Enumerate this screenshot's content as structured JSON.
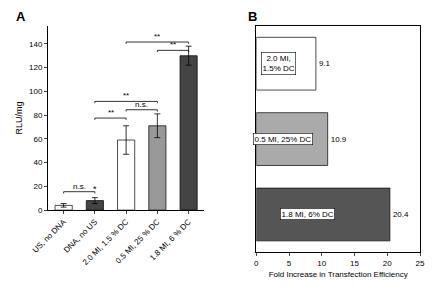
{
  "chart_data": [
    {
      "type": "bar",
      "title": "A",
      "categories": [
        "US, no DNA",
        "DNA, no US",
        "2.0 MI, 1.5 % DC",
        "0.5 MI, 25 % DC",
        "1.8 MI, 6 % DC"
      ],
      "values": [
        4,
        8,
        59,
        71,
        130
      ],
      "errors": [
        1.5,
        2.5,
        12,
        10,
        8
      ],
      "colors": [
        "white",
        "#444444",
        "white",
        "#999999",
        "#444444"
      ],
      "ylabel": "RLU/mg",
      "ylim": [
        0,
        155
      ],
      "yticks": [
        0,
        20,
        40,
        60,
        80,
        100,
        120,
        140
      ],
      "grid": false,
      "annotations": [
        {
          "text": "n.s.",
          "from": "US, no DNA",
          "to": "DNA, no US",
          "y": 14
        },
        {
          "text": "*",
          "x": "DNA, no US",
          "y": 13
        },
        {
          "text": "**",
          "from": "DNA, no US",
          "to": "2.0 MI, 1.5 % DC",
          "y": 76
        },
        {
          "text": "n.s.",
          "from": "2.0 MI, 1.5 % DC",
          "to": "0.5 MI, 25 % DC",
          "y": 83
        },
        {
          "text": "**",
          "from": "DNA, no US",
          "to": "0.5 MI, 25 % DC",
          "y": 90
        },
        {
          "text": "**",
          "from": "2.0 MI, 1.5 % DC",
          "to": "1.8 MI, 6 % DC",
          "y": 140
        },
        {
          "text": "**",
          "from": "0.5 MI, 25 % DC",
          "to": "1.8 MI, 6 % DC",
          "y": 133
        }
      ]
    },
    {
      "type": "bar",
      "title": "B",
      "orientation": "horizontal",
      "categories": [
        "2.0 MI,\n1.5% DC",
        "0.5 MI, 25% DC",
        "1.8 MI, 6% DC"
      ],
      "values": [
        9.1,
        10.9,
        20.4
      ],
      "value_labels": [
        "9.1",
        "10.9",
        "20.4"
      ],
      "data_labels": true,
      "colors": [
        "white",
        "#aaaaaa",
        "#555555"
      ],
      "xlabel": "Fold Increase in Transfection Efficiency",
      "xlim": [
        0,
        25
      ],
      "xticks": [
        0,
        5,
        10,
        15,
        20,
        25
      ],
      "tick_labels": "x",
      "grid": false
    }
  ]
}
